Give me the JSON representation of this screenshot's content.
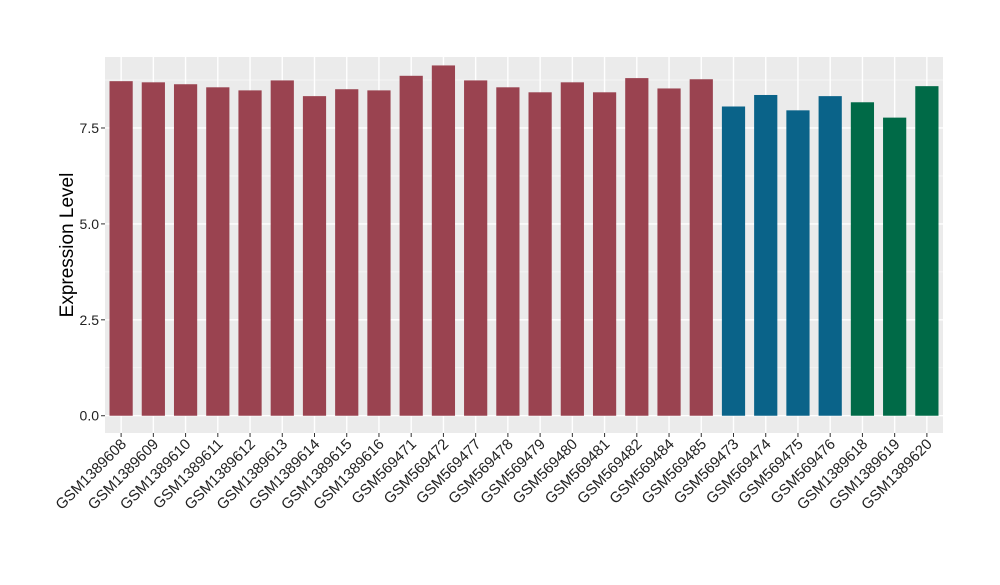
{
  "chart_data": {
    "type": "bar",
    "title": "",
    "xlabel": "",
    "ylabel": "Expression Level",
    "ylim": [
      -0.45,
      9.35
    ],
    "yticks": [
      0.0,
      2.5,
      5.0,
      7.5
    ],
    "ytick_labels": [
      "0.0",
      "2.5",
      "5.0",
      "7.5"
    ],
    "grid": true,
    "legend": "none",
    "colors": {
      "group1": "#9a4350",
      "group2": "#0a6389",
      "group3": "#006a47"
    },
    "categories": [
      "GSM1389608",
      "GSM1389609",
      "GSM1389610",
      "GSM1389611",
      "GSM1389612",
      "GSM1389613",
      "GSM1389614",
      "GSM1389615",
      "GSM1389616",
      "GSM569471",
      "GSM569472",
      "GSM569477",
      "GSM569478",
      "GSM569479",
      "GSM569480",
      "GSM569481",
      "GSM569482",
      "GSM569484",
      "GSM569485",
      "GSM569473",
      "GSM569474",
      "GSM569475",
      "GSM569476",
      "GSM1389618",
      "GSM1389619",
      "GSM1389620"
    ],
    "values": [
      8.72,
      8.69,
      8.64,
      8.56,
      8.48,
      8.74,
      8.33,
      8.51,
      8.48,
      8.86,
      9.13,
      8.74,
      8.56,
      8.43,
      8.69,
      8.43,
      8.8,
      8.53,
      8.77,
      8.06,
      8.36,
      7.96,
      8.33,
      8.17,
      7.77,
      8.59
    ],
    "groups": [
      "group1",
      "group1",
      "group1",
      "group1",
      "group1",
      "group1",
      "group1",
      "group1",
      "group1",
      "group1",
      "group1",
      "group1",
      "group1",
      "group1",
      "group1",
      "group1",
      "group1",
      "group1",
      "group1",
      "group2",
      "group2",
      "group2",
      "group2",
      "group3",
      "group3",
      "group3"
    ]
  }
}
